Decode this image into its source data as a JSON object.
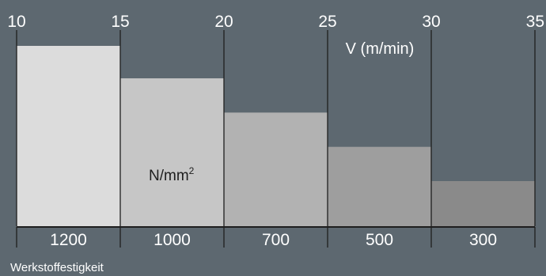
{
  "chart_data": {
    "type": "bar",
    "x_ticks": [
      "10",
      "15",
      "20",
      "25",
      "30",
      "35"
    ],
    "x_range": [
      10,
      35
    ],
    "x_axis_label": "V (m/min)",
    "categories": [
      "1200",
      "1000",
      "700",
      "500",
      "300"
    ],
    "category_axis_label": "Werkstoffestigkeit",
    "unit_label": {
      "base": "N/mm",
      "sup": "2"
    },
    "bars": [
      {
        "category": "1200",
        "x_start": 10,
        "x_end": 15,
        "value": 1.0,
        "color": "#dcdcdc"
      },
      {
        "category": "1000",
        "x_start": 15,
        "x_end": 20,
        "value": 0.82,
        "color": "#c6c6c6"
      },
      {
        "category": "700",
        "x_start": 20,
        "x_end": 25,
        "value": 0.63,
        "color": "#b2b2b2"
      },
      {
        "category": "500",
        "x_start": 25,
        "x_end": 30,
        "value": 0.44,
        "color": "#9e9e9e"
      },
      {
        "category": "300",
        "x_start": 30,
        "x_end": 35,
        "value": 0.25,
        "color": "#8a8a8a"
      }
    ],
    "colors": {
      "background": "#5d6870",
      "lines": "#1e1e1e",
      "text": "#ffffff"
    }
  }
}
